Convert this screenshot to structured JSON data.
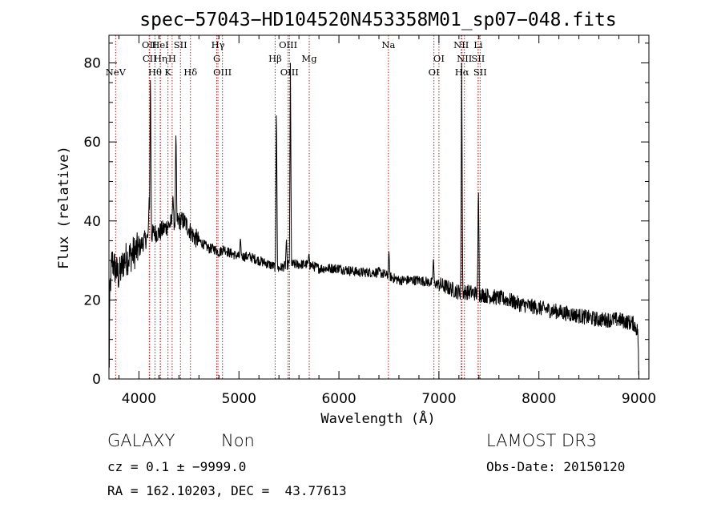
{
  "chart_data": {
    "type": "line",
    "title": "spec−57043−HD104520N453358M01_sp07−048.fits",
    "xlabel": "Wavelength (Å)",
    "ylabel": "Flux (relative)",
    "xlim": [
      3700,
      9100
    ],
    "ylim": [
      0,
      87
    ],
    "x_ticks": [
      4000,
      5000,
      6000,
      7000,
      8000,
      9000
    ],
    "y_ticks": [
      0,
      20,
      40,
      60,
      80
    ],
    "grid": false,
    "colors": {
      "spectrum": "#000000",
      "line_markers": "#b22222"
    },
    "spectrum_anchors": [
      [
        3700,
        3
      ],
      [
        3710,
        22
      ],
      [
        3730,
        30
      ],
      [
        3760,
        28
      ],
      [
        3800,
        26
      ],
      [
        3850,
        30
      ],
      [
        3900,
        31
      ],
      [
        3950,
        32
      ],
      [
        4000,
        33
      ],
      [
        4050,
        35
      ],
      [
        4100,
        36
      ],
      [
        4150,
        37
      ],
      [
        4200,
        37
      ],
      [
        4250,
        38
      ],
      [
        4300,
        39
      ],
      [
        4350,
        40
      ],
      [
        4400,
        40
      ],
      [
        4450,
        40
      ],
      [
        4500,
        38
      ],
      [
        4550,
        36
      ],
      [
        4600,
        35
      ],
      [
        4650,
        34
      ],
      [
        4700,
        33
      ],
      [
        4750,
        33
      ],
      [
        4800,
        32
      ],
      [
        4850,
        33
      ],
      [
        4900,
        32
      ],
      [
        5000,
        31
      ],
      [
        5100,
        31
      ],
      [
        5200,
        30
      ],
      [
        5300,
        29
      ],
      [
        5400,
        28
      ],
      [
        5500,
        29
      ],
      [
        5600,
        29
      ],
      [
        5700,
        29
      ],
      [
        5800,
        28
      ],
      [
        6000,
        28
      ],
      [
        6200,
        27
      ],
      [
        6400,
        27
      ],
      [
        6500,
        26
      ],
      [
        6600,
        25
      ],
      [
        6800,
        25
      ],
      [
        7000,
        24
      ],
      [
        7100,
        23
      ],
      [
        7200,
        22
      ],
      [
        7300,
        22
      ],
      [
        7500,
        21
      ],
      [
        7700,
        20
      ],
      [
        7800,
        19
      ],
      [
        8000,
        18
      ],
      [
        8200,
        17
      ],
      [
        8400,
        16
      ],
      [
        8600,
        15
      ],
      [
        8800,
        15
      ],
      [
        8950,
        14
      ],
      [
        8990,
        12
      ],
      [
        9000,
        1
      ]
    ],
    "emission_peaks": [
      [
        4102,
        46
      ],
      [
        4115,
        80
      ],
      [
        4340,
        47
      ],
      [
        4370,
        64
      ],
      [
        5015,
        36
      ],
      [
        5375,
        71
      ],
      [
        5475,
        36
      ],
      [
        5515,
        80
      ],
      [
        5700,
        32
      ],
      [
        6500,
        33
      ],
      [
        6945,
        31
      ],
      [
        7228,
        80
      ],
      [
        7395,
        50
      ]
    ],
    "spectral_lines": [
      {
        "label": "NeV",
        "x": 3767,
        "row": 3
      },
      {
        "label": "OII",
        "x": 4103,
        "row": 1
      },
      {
        "label": "CII",
        "x": 4107,
        "row": 2
      },
      {
        "label": "Hθ",
        "x": 4160,
        "row": 3
      },
      {
        "label": "HeI",
        "x": 4213,
        "row": 1
      },
      {
        "label": "Hη",
        "x": 4215,
        "row": 2
      },
      {
        "label": "K",
        "x": 4290,
        "row": 3
      },
      {
        "label": "H",
        "x": 4332,
        "row": 2
      },
      {
        "label": "SII",
        "x": 4415,
        "row": 1
      },
      {
        "label": "Hδ",
        "x": 4515,
        "row": 3
      },
      {
        "label": "Hγ",
        "x": 4790,
        "row": 1
      },
      {
        "label": "G",
        "x": 4778,
        "row": 2
      },
      {
        "label": "OIII",
        "x": 4835,
        "row": 3
      },
      {
        "label": "Hβ",
        "x": 5362,
        "row": 2
      },
      {
        "label": "OIII",
        "x": 5492,
        "row": 1
      },
      {
        "label": "OIII",
        "x": 5505,
        "row": 3
      },
      {
        "label": "Mg",
        "x": 5703,
        "row": 2
      },
      {
        "label": "Na",
        "x": 6495,
        "row": 1
      },
      {
        "label": "OI",
        "x": 7000,
        "row": 2
      },
      {
        "label": "OI",
        "x": 6950,
        "row": 3
      },
      {
        "label": "NII",
        "x": 7223,
        "row": 1
      },
      {
        "label": "NII",
        "x": 7255,
        "row": 2
      },
      {
        "label": "Hα",
        "x": 7230,
        "row": 3
      },
      {
        "label": "Li",
        "x": 7393,
        "row": 1
      },
      {
        "label": "SII",
        "x": 7392,
        "row": 2
      },
      {
        "label": "SII",
        "x": 7412,
        "row": 3
      }
    ]
  },
  "info": {
    "object_class": "GALAXY",
    "subclass": "Non",
    "survey": "LAMOST DR3",
    "cz": "cz = 0.1 ± −9999.0",
    "obs_date": "Obs-Date: 20150120",
    "coords": "RA = 162.10203, DEC =  43.77613"
  }
}
